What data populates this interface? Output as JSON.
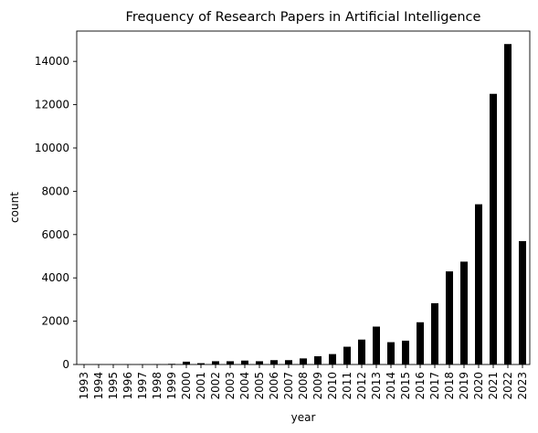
{
  "chart_data": {
    "type": "bar",
    "title": "Frequency of Research Papers in Artificial Intelligence",
    "xlabel": "year",
    "ylabel": "count",
    "categories": [
      "1993",
      "1994",
      "1995",
      "1996",
      "1997",
      "1998",
      "1999",
      "2000",
      "2001",
      "2002",
      "2003",
      "2004",
      "2005",
      "2006",
      "2007",
      "2008",
      "2009",
      "2010",
      "2011",
      "2012",
      "2013",
      "2014",
      "2015",
      "2016",
      "2017",
      "2018",
      "2019",
      "2020",
      "2021",
      "2022",
      "2023"
    ],
    "values": [
      5,
      5,
      5,
      5,
      5,
      10,
      30,
      130,
      60,
      150,
      150,
      180,
      150,
      200,
      200,
      280,
      380,
      480,
      820,
      1150,
      1750,
      1030,
      1100,
      1950,
      2830,
      4300,
      4750,
      7400,
      12500,
      14800,
      5700
    ],
    "ylim": [
      0,
      15400
    ],
    "yticks": [
      0,
      2000,
      4000,
      6000,
      8000,
      10000,
      12000,
      14000
    ],
    "bar_color": "#000000",
    "grid": false,
    "legend": "none"
  }
}
